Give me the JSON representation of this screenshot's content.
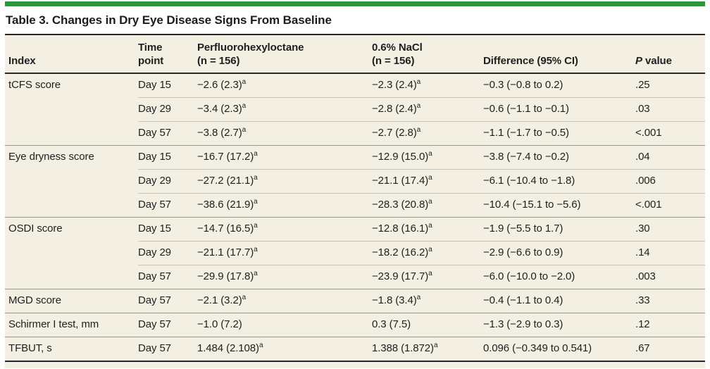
{
  "colors": {
    "accent_green": "#2E963C",
    "table_bg": "#F3EFE2",
    "rule_dark": "#262626",
    "row_line": "#C7C3B6",
    "group_line": "#9B988C",
    "text": "#1F1F1F"
  },
  "title": "Table 3. Changes in Dry Eye Disease Signs From Baseline",
  "table": {
    "headers": {
      "index": "Index",
      "time_line1": "Time",
      "time_line2": "point",
      "pfho_line1": "Perfluorohexyloctane",
      "pfho_line2": "(n = 156)",
      "nacl_line1": "0.6% NaCl",
      "nacl_line2": "(n = 156)",
      "difference": "Difference (95% CI)",
      "p_italic": "P",
      "p_rest": " value"
    },
    "rows": [
      {
        "index": "tCFS score",
        "time": "Day 15",
        "pfho": "−2.6 (2.3)",
        "pfho_sup": "a",
        "nacl": "−2.3 (2.4)",
        "nacl_sup": "a",
        "diff": "−0.3 (−0.8 to 0.2)",
        "p": ".25",
        "group_start": true
      },
      {
        "index": "",
        "time": "Day 29",
        "pfho": "−3.4 (2.3)",
        "pfho_sup": "a",
        "nacl": "−2.8 (2.4)",
        "nacl_sup": "a",
        "diff": "−0.6 (−1.1 to −0.1)",
        "p": ".03",
        "group_start": false
      },
      {
        "index": "",
        "time": "Day 57",
        "pfho": "−3.8 (2.7)",
        "pfho_sup": "a",
        "nacl": "−2.7 (2.8)",
        "nacl_sup": "a",
        "diff": "−1.1 (−1.7 to −0.5)",
        "p": "<.001",
        "group_start": false
      },
      {
        "index": "Eye dryness score",
        "time": "Day 15",
        "pfho": "−16.7 (17.2)",
        "pfho_sup": "a",
        "nacl": "−12.9 (15.0)",
        "nacl_sup": "a",
        "diff": "−3.8 (−7.4 to −0.2)",
        "p": ".04",
        "group_start": true
      },
      {
        "index": "",
        "time": "Day 29",
        "pfho": "−27.2 (21.1)",
        "pfho_sup": "a",
        "nacl": "−21.1 (17.4)",
        "nacl_sup": "a",
        "diff": "−6.1 (−10.4 to −1.8)",
        "p": ".006",
        "group_start": false
      },
      {
        "index": "",
        "time": "Day 57",
        "pfho": "−38.6 (21.9)",
        "pfho_sup": "a",
        "nacl": "−28.3 (20.8)",
        "nacl_sup": "a",
        "diff": "−10.4 (−15.1 to −5.6)",
        "p": "<.001",
        "group_start": false
      },
      {
        "index": "OSDI score",
        "time": "Day 15",
        "pfho": "−14.7 (16.5)",
        "pfho_sup": "a",
        "nacl": "−12.8 (16.1)",
        "nacl_sup": "a",
        "diff": "−1.9 (−5.5 to 1.7)",
        "p": ".30",
        "group_start": true
      },
      {
        "index": "",
        "time": "Day 29",
        "pfho": "−21.1 (17.7)",
        "pfho_sup": "a",
        "nacl": "−18.2 (16.2)",
        "nacl_sup": "a",
        "diff": "−2.9 (−6.6 to 0.9)",
        "p": ".14",
        "group_start": false
      },
      {
        "index": "",
        "time": "Day 57",
        "pfho": "−29.9 (17.8)",
        "pfho_sup": "a",
        "nacl": "−23.9 (17.7)",
        "nacl_sup": "a",
        "diff": "−6.0 (−10.0 to −2.0)",
        "p": ".003",
        "group_start": false
      },
      {
        "index": "MGD score",
        "time": "Day 57",
        "pfho": "−2.1 (3.2)",
        "pfho_sup": "a",
        "nacl": "−1.8 (3.4)",
        "nacl_sup": "a",
        "diff": "−0.4 (−1.1 to 0.4)",
        "p": ".33",
        "group_start": true
      },
      {
        "index": "Schirmer I test, mm",
        "time": "Day 57",
        "pfho": "−1.0 (7.2)",
        "pfho_sup": "",
        "nacl": "0.3 (7.5)",
        "nacl_sup": "",
        "diff": "−1.3 (−2.9 to 0.3)",
        "p": ".12",
        "group_start": true
      },
      {
        "index": "TFBUT, s",
        "time": "Day 57",
        "pfho": "1.484 (2.108)",
        "pfho_sup": "a",
        "nacl": "1.388 (1.872)",
        "nacl_sup": "a",
        "diff": "0.096 (−0.349 to 0.541)",
        "p": ".67",
        "group_start": true
      }
    ]
  }
}
